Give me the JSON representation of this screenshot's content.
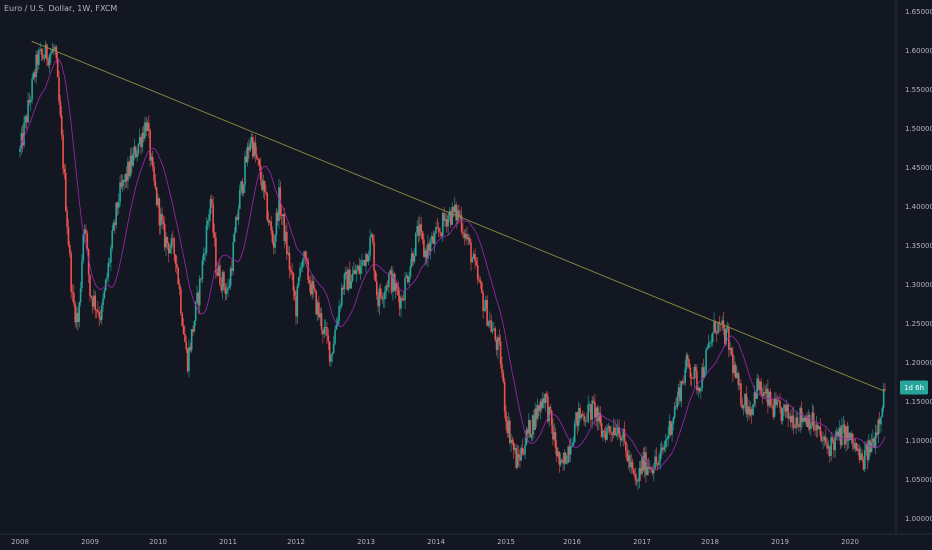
{
  "header": {
    "symbol_title": "Euro / U.S. Dollar, 1W, FXCM"
  },
  "colors": {
    "background": "#131722",
    "up": "#26a69a",
    "down": "#ef5350",
    "moving_average": "#9c27b0",
    "trendline": "#8d8a3f",
    "axis_text": "#b2b5be",
    "axis_line": "#2a2e39",
    "price_tag": "#26a69a"
  },
  "price_tag": {
    "label": "1d 6h",
    "price": 1.168
  },
  "trendline": {
    "start": [
      "2008-03",
      1.612
    ],
    "end": [
      "2020-07",
      1.163
    ]
  },
  "chart_data": {
    "type": "candlestick",
    "title": "Euro / U.S. Dollar, 1W, FXCM",
    "x_tick_labels": [
      "2008",
      "2009",
      "2010",
      "2011",
      "2012",
      "2013",
      "2014",
      "2015",
      "2016",
      "2017",
      "2018",
      "2019",
      "2020"
    ],
    "y_tick_labels": [
      "1.65000",
      "1.60000",
      "1.55000",
      "1.50000",
      "1.45000",
      "1.40000",
      "1.35000",
      "1.30000",
      "1.25000",
      "1.20000",
      "1.15000",
      "1.10000",
      "1.05000",
      "1.00000"
    ],
    "xlim": [
      "2008-01",
      "2020-09"
    ],
    "ylim": [
      0.98,
      1.665
    ],
    "y_axis_side": "right",
    "grid": false,
    "series": [
      {
        "name": "EUR/USD",
        "approx_weekly_path": [
          [
            "2008-01",
            1.47
          ],
          [
            "2008-03",
            1.55
          ],
          [
            "2008-04",
            1.59
          ],
          [
            "2008-07",
            1.6
          ],
          [
            "2008-08",
            1.5
          ],
          [
            "2008-10",
            1.28
          ],
          [
            "2008-11",
            1.25
          ],
          [
            "2008-12",
            1.39
          ],
          [
            "2009-01",
            1.29
          ],
          [
            "2009-03",
            1.26
          ],
          [
            "2009-06",
            1.41
          ],
          [
            "2009-09",
            1.47
          ],
          [
            "2009-11",
            1.51
          ],
          [
            "2009-12",
            1.44
          ],
          [
            "2010-02",
            1.36
          ],
          [
            "2010-04",
            1.34
          ],
          [
            "2010-06",
            1.2
          ],
          [
            "2010-08",
            1.29
          ],
          [
            "2010-10",
            1.41
          ],
          [
            "2010-11",
            1.32
          ],
          [
            "2011-01",
            1.29
          ],
          [
            "2011-03",
            1.41
          ],
          [
            "2011-05",
            1.49
          ],
          [
            "2011-07",
            1.43
          ],
          [
            "2011-09",
            1.35
          ],
          [
            "2011-10",
            1.41
          ],
          [
            "2012-01",
            1.27
          ],
          [
            "2012-02",
            1.34
          ],
          [
            "2012-05",
            1.26
          ],
          [
            "2012-07",
            1.21
          ],
          [
            "2012-09",
            1.3
          ],
          [
            "2012-12",
            1.32
          ],
          [
            "2013-02",
            1.36
          ],
          [
            "2013-03",
            1.28
          ],
          [
            "2013-05",
            1.31
          ],
          [
            "2013-07",
            1.28
          ],
          [
            "2013-10",
            1.37
          ],
          [
            "2013-11",
            1.34
          ],
          [
            "2014-01",
            1.36
          ],
          [
            "2014-03",
            1.39
          ],
          [
            "2014-05",
            1.39
          ],
          [
            "2014-07",
            1.34
          ],
          [
            "2014-09",
            1.28
          ],
          [
            "2014-12",
            1.21
          ],
          [
            "2015-01",
            1.13
          ],
          [
            "2015-03",
            1.07
          ],
          [
            "2015-05",
            1.11
          ],
          [
            "2015-08",
            1.16
          ],
          [
            "2015-11",
            1.06
          ],
          [
            "2016-02",
            1.13
          ],
          [
            "2016-05",
            1.14
          ],
          [
            "2016-06",
            1.11
          ],
          [
            "2016-09",
            1.12
          ],
          [
            "2016-12",
            1.04
          ],
          [
            "2017-01",
            1.07
          ],
          [
            "2017-04",
            1.07
          ],
          [
            "2017-06",
            1.12
          ],
          [
            "2017-09",
            1.2
          ],
          [
            "2017-11",
            1.17
          ],
          [
            "2018-02",
            1.25
          ],
          [
            "2018-04",
            1.23
          ],
          [
            "2018-06",
            1.16
          ],
          [
            "2018-08",
            1.14
          ],
          [
            "2018-09",
            1.17
          ],
          [
            "2018-12",
            1.14
          ],
          [
            "2019-03",
            1.13
          ],
          [
            "2019-06",
            1.13
          ],
          [
            "2019-09",
            1.09
          ],
          [
            "2019-12",
            1.11
          ],
          [
            "2020-02",
            1.09
          ],
          [
            "2020-03",
            1.07
          ],
          [
            "2020-05",
            1.1
          ],
          [
            "2020-06",
            1.13
          ],
          [
            "2020-07",
            1.17
          ]
        ]
      },
      {
        "name": "",
        "kind": "moving_average_line",
        "color": "#9c27b0"
      }
    ],
    "annotations": [
      {
        "type": "trendline",
        "from": [
          "2008-03",
          1.612
        ],
        "to": [
          "2020-07",
          1.163
        ]
      },
      {
        "type": "price_label",
        "text": "1d 6h",
        "price": 1.168
      }
    ]
  }
}
